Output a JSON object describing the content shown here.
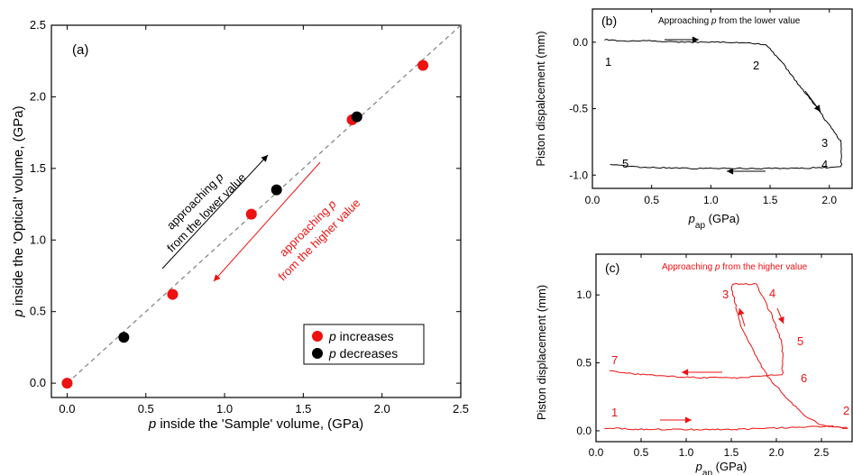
{
  "chart_data": [
    {
      "panel": "(a)",
      "type": "scatter",
      "xlabel": "p inside the 'Sample' volume, (GPa)",
      "ylabel": "p inside the 'Optical' volume, (GPa)",
      "xlim": [
        -0.1,
        2.5
      ],
      "ylim": [
        -0.1,
        2.5
      ],
      "xticks": [
        "0.0",
        "0.5",
        "1.0",
        "1.5",
        "2.0",
        "2.5"
      ],
      "yticks": [
        "0.0",
        "0.5",
        "1.0",
        "1.5",
        "2.0",
        "2.5"
      ],
      "legend_position": "bottom-right",
      "series": [
        {
          "name": "p increases",
          "color": "#ee1111",
          "x": [
            0.0,
            0.67,
            1.17,
            1.81,
            2.26
          ],
          "y": [
            0.0,
            0.62,
            1.18,
            1.84,
            2.22
          ]
        },
        {
          "name": "p decreases",
          "color": "#000000",
          "x": [
            0.36,
            1.33,
            1.84
          ],
          "y": [
            0.32,
            1.35,
            1.86
          ]
        }
      ],
      "reference_line": {
        "style": "dashed",
        "color": "#808080",
        "x": [
          0.0,
          2.4
        ],
        "y": [
          0.0,
          2.4
        ]
      },
      "annotations": [
        {
          "lines": [
            "approaching p",
            "from the lower value"
          ],
          "color": "#000000"
        },
        {
          "lines": [
            "approaching p",
            "from the higher value"
          ],
          "color": "#ee1111"
        }
      ]
    },
    {
      "panel": "(b)",
      "type": "line",
      "title": "Approaching p from the lower value",
      "xlabel": "p_ap (GPa)",
      "ylabel": "Piston dispalcement (mm)",
      "xlim": [
        0.0,
        2.2
      ],
      "ylim": [
        -1.1,
        0.25
      ],
      "xticks": [
        "0.0",
        "0.5",
        "1.0",
        "1.5",
        "2.0"
      ],
      "yticks": [
        "0.0",
        "-0.5",
        "-1.0"
      ],
      "color": "#000000",
      "series": [
        {
          "x": [
            0.1,
            0.25,
            0.5,
            0.8,
            1.1,
            1.4,
            1.47,
            1.6,
            1.75,
            1.9,
            2.03,
            2.07,
            2.1,
            2.1,
            2.05,
            1.7,
            1.2,
            0.8,
            0.4,
            0.2,
            0.15
          ],
          "y": [
            0.02,
            0.01,
            0.01,
            0.0,
            0.0,
            -0.01,
            -0.02,
            -0.15,
            -0.33,
            -0.5,
            -0.66,
            -0.72,
            -0.74,
            -0.94,
            -0.94,
            -0.95,
            -0.95,
            -0.95,
            -0.94,
            -0.92,
            -0.92
          ]
        }
      ],
      "point_labels": [
        "1",
        "2",
        "3",
        "4",
        "5"
      ]
    },
    {
      "panel": "(c)",
      "type": "line",
      "title": "Approaching p from the higher value",
      "xlabel": "p_ap (GPa)",
      "ylabel": "Piston displacement (mm)",
      "xlim": [
        0.0,
        2.85
      ],
      "ylim": [
        -0.08,
        1.3
      ],
      "xticks": [
        "0.0",
        "0.5",
        "1.0",
        "1.5",
        "2.0",
        "2.5"
      ],
      "yticks": [
        "0.0",
        "0.5",
        "1.0"
      ],
      "color": "#ee1111",
      "series": [
        {
          "x": [
            0.1,
            0.5,
            1.0,
            1.5,
            2.0,
            2.4,
            2.6,
            2.75,
            2.8,
            2.5,
            2.3,
            2.1,
            1.9,
            1.75,
            1.6,
            1.55,
            1.5,
            1.52,
            1.78,
            1.8,
            1.95,
            2.05,
            2.07,
            2.07,
            2.0,
            1.75,
            1.6,
            1.5,
            1.2,
            0.8,
            0.4,
            0.15
          ],
          "y": [
            0.02,
            0.01,
            0.01,
            0.01,
            0.02,
            0.03,
            0.03,
            0.02,
            0.02,
            0.04,
            0.12,
            0.25,
            0.4,
            0.58,
            0.78,
            0.92,
            1.06,
            1.08,
            1.08,
            1.05,
            0.85,
            0.67,
            0.57,
            0.41,
            0.41,
            0.4,
            0.39,
            0.39,
            0.39,
            0.4,
            0.42,
            0.44
          ]
        }
      ],
      "point_labels": [
        "1",
        "2",
        "3",
        "4",
        "5",
        "6",
        "7"
      ]
    }
  ]
}
